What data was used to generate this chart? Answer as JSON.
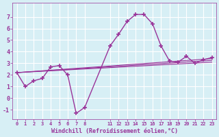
{
  "bg_color": "#d7eff5",
  "grid_color": "#ffffff",
  "line_color": "#993399",
  "xlabel": "Windchill (Refroidissement éolien,°C)",
  "xlabel_color": "#993399",
  "ylabel_color": "#993399",
  "ytick_labels": [
    "-1",
    "0",
    "1",
    "2",
    "3",
    "4",
    "5",
    "6",
    "7"
  ],
  "ylim": [
    -1.8,
    8.2
  ],
  "xlim": [
    -0.5,
    23.5
  ],
  "line1_x": [
    0,
    1,
    2,
    3,
    4,
    5,
    6,
    7,
    8,
    11,
    12,
    13,
    14,
    15,
    16,
    17,
    18,
    19,
    20,
    21,
    22,
    23
  ],
  "line1_y": [
    2.2,
    1.0,
    1.5,
    1.7,
    2.7,
    2.8,
    2.0,
    -1.3,
    -0.8,
    4.5,
    5.5,
    6.6,
    7.2,
    7.2,
    6.4,
    4.5,
    3.2,
    3.1,
    3.6,
    3.0,
    3.3,
    3.5
  ],
  "line2_x": [
    0,
    23
  ],
  "line2_y": [
    2.2,
    3.4
  ],
  "line3_x": [
    0,
    23
  ],
  "line3_y": [
    2.2,
    3.25
  ],
  "line4_x": [
    0,
    23
  ],
  "line4_y": [
    2.2,
    3.1
  ]
}
